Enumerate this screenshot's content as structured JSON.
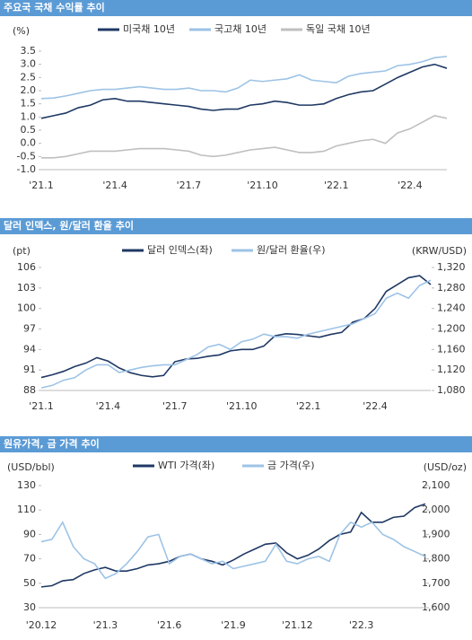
{
  "chart_data": [
    {
      "type": "line",
      "title": "주요국 국채 수익률 추이",
      "y_label": "(%)",
      "legend": "top",
      "categories": [
        "'21.1",
        null,
        null,
        null,
        null,
        null,
        "'21.4",
        null,
        null,
        null,
        null,
        null,
        "'21.7",
        null,
        null,
        null,
        null,
        null,
        "'21.10",
        null,
        null,
        null,
        null,
        null,
        "'22.1",
        null,
        null,
        null,
        null,
        null,
        "'22.4",
        null,
        null,
        null
      ],
      "ylim": [
        -1.0,
        3.5
      ],
      "yticks": [
        {
          "value": -1.0,
          "label": "-1.0"
        },
        -0.5,
        {
          "value": 0,
          "label": "0.0"
        },
        0.5,
        {
          "value": 1.0,
          "label": "1.0"
        },
        1.5,
        {
          "value": 2.0,
          "label": "2.0"
        },
        2.5,
        {
          "value": 3.0,
          "label": "3.0"
        },
        3.5
      ],
      "series": [
        {
          "name": "미국채 10년",
          "color": "#1f3864",
          "values": [
            0.95,
            1.05,
            1.15,
            1.35,
            1.45,
            1.65,
            1.7,
            1.6,
            1.6,
            1.55,
            1.5,
            1.45,
            1.4,
            1.3,
            1.25,
            1.3,
            1.3,
            1.45,
            1.5,
            1.6,
            1.55,
            1.45,
            1.45,
            1.5,
            1.7,
            1.85,
            1.95,
            2.0,
            2.25,
            2.5,
            2.7,
            2.9,
            3.0,
            2.85
          ]
        },
        {
          "name": "국고채 10년",
          "color": "#9dc3e6",
          "values": [
            1.7,
            1.72,
            1.8,
            1.9,
            2.0,
            2.05,
            2.05,
            2.1,
            2.15,
            2.1,
            2.05,
            2.05,
            2.1,
            2.0,
            2.0,
            1.95,
            2.1,
            2.4,
            2.35,
            2.4,
            2.45,
            2.6,
            2.4,
            2.35,
            2.3,
            2.55,
            2.65,
            2.7,
            2.75,
            2.95,
            3.0,
            3.1,
            3.25,
            3.3
          ]
        },
        {
          "name": "독일 국채 10년",
          "color": "#bfbfbf",
          "values": [
            -0.55,
            -0.55,
            -0.5,
            -0.4,
            -0.3,
            -0.3,
            -0.3,
            -0.25,
            -0.2,
            -0.2,
            -0.2,
            -0.25,
            -0.3,
            -0.45,
            -0.5,
            -0.45,
            -0.35,
            -0.25,
            -0.2,
            -0.15,
            -0.25,
            -0.35,
            -0.35,
            -0.3,
            -0.1,
            0.0,
            0.1,
            0.15,
            0.0,
            0.4,
            0.55,
            0.8,
            1.05,
            0.95
          ]
        }
      ]
    },
    {
      "type": "line",
      "title": "달러 인덱스, 원/달러 환율 추이",
      "y_label": "(pt)",
      "y2_label": "(KRW/USD)",
      "legend": "top",
      "categories": [
        "'21.1",
        null,
        null,
        null,
        null,
        null,
        "'21.4",
        null,
        null,
        null,
        null,
        null,
        "'21.7",
        null,
        null,
        null,
        null,
        null,
        "'21.10",
        null,
        null,
        null,
        null,
        null,
        "'22.1",
        null,
        null,
        null,
        null,
        null,
        "'22.4",
        null,
        null,
        null,
        null,
        null
      ],
      "ylim": [
        88,
        106
      ],
      "yticks": [
        88,
        91,
        94,
        97,
        100,
        103,
        106
      ],
      "y2lim": [
        1080,
        1320
      ],
      "y2ticks": [
        {
          "value": 1080,
          "label": "1,080"
        },
        {
          "value": 1120,
          "label": "1,120"
        },
        {
          "value": 1160,
          "label": "1,160"
        },
        {
          "value": 1200,
          "label": "1,200"
        },
        {
          "value": 1240,
          "label": "1,240"
        },
        {
          "value": 1280,
          "label": "1,280"
        },
        {
          "value": 1320,
          "label": "1,320"
        }
      ],
      "series": [
        {
          "name": "달러 인덱스(좌)",
          "color": "#1f3864",
          "values": [
            89.9,
            90.3,
            90.8,
            91.5,
            92,
            92.8,
            92.3,
            91.3,
            90.6,
            90.2,
            90,
            90.2,
            92.2,
            92.6,
            92.7,
            93,
            93.2,
            93.8,
            94,
            94,
            94.5,
            96,
            96.3,
            96.2,
            96,
            95.8,
            96.2,
            96.5,
            98,
            98.5,
            100,
            102.5,
            103.5,
            104.5,
            104.8,
            103.5
          ]
        },
        {
          "name": "원/달러 환율(우)",
          "color": "#9dc3e6",
          "axis": "y2",
          "values": [
            1085,
            1090,
            1100,
            1105,
            1120,
            1130,
            1130,
            1115,
            1120,
            1125,
            1128,
            1130,
            1130,
            1140,
            1150,
            1165,
            1170,
            1160,
            1175,
            1180,
            1190,
            1185,
            1185,
            1182,
            1190,
            1195,
            1200,
            1205,
            1210,
            1220,
            1230,
            1260,
            1270,
            1260,
            1285,
            1295
          ]
        }
      ]
    },
    {
      "type": "line",
      "title": "원유가격, 금 가격 추이",
      "y_label": "(USD/bbl)",
      "y2_label": "(USD/oz)",
      "legend": "top",
      "categories": [
        "'20.12",
        null,
        null,
        null,
        null,
        null,
        "'21.3",
        null,
        null,
        null,
        null,
        null,
        "'21.6",
        null,
        null,
        null,
        null,
        null,
        "'21.9",
        null,
        null,
        null,
        null,
        null,
        "'21.12",
        null,
        null,
        null,
        null,
        null,
        "'22.3",
        null,
        null,
        null,
        null,
        null,
        null
      ],
      "ylim": [
        30,
        130
      ],
      "yticks": [
        30,
        50,
        70,
        90,
        110,
        130
      ],
      "y2lim": [
        1600,
        2100
      ],
      "y2ticks": [
        {
          "value": 1600,
          "label": "1,600"
        },
        {
          "value": 1700,
          "label": "1,700"
        },
        {
          "value": 1800,
          "label": "1,800"
        },
        {
          "value": 1900,
          "label": "1,900"
        },
        {
          "value": 2000,
          "label": "2,000"
        },
        {
          "value": 2100,
          "label": "2,100"
        }
      ],
      "series": [
        {
          "name": "WTI 가격(좌)",
          "color": "#1f3864",
          "values": [
            47,
            48,
            52,
            53,
            58,
            61,
            63,
            60,
            60,
            62,
            65,
            66,
            68,
            72,
            74,
            70,
            68,
            65,
            69,
            74,
            78,
            82,
            83,
            75,
            70,
            73,
            78,
            85,
            90,
            92,
            108,
            100,
            100,
            104,
            105,
            112,
            115
          ]
        },
        {
          "name": "금 가격(우)",
          "color": "#9dc3e6",
          "axis": "y2",
          "values": [
            1870,
            1880,
            1950,
            1850,
            1800,
            1780,
            1720,
            1740,
            1780,
            1830,
            1890,
            1900,
            1780,
            1810,
            1820,
            1800,
            1780,
            1790,
            1760,
            1770,
            1780,
            1790,
            1860,
            1790,
            1780,
            1800,
            1810,
            1790,
            1900,
            1950,
            1930,
            1950,
            1900,
            1880,
            1850,
            1830,
            1810
          ]
        }
      ]
    }
  ]
}
